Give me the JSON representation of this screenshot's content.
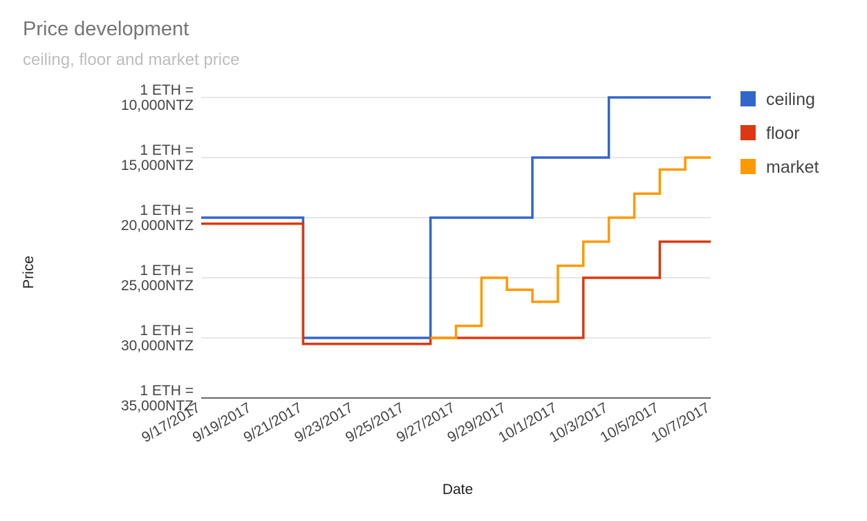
{
  "chart_data": {
    "type": "line",
    "title": "Price development",
    "subtitle": "ceiling, floor and market price",
    "xlabel": "Date",
    "ylabel": "Price",
    "x_type": "date",
    "x_range": [
      "9/17/2017",
      "10/7/2017"
    ],
    "x_ticks": [
      "9/17/2017",
      "9/19/2017",
      "9/21/2017",
      "9/23/2017",
      "9/25/2017",
      "9/27/2017",
      "9/29/2017",
      "10/1/2017",
      "10/3/2017",
      "10/5/2017",
      "10/7/2017"
    ],
    "y_unit": "NTZ per ETH",
    "y_axis_reversed": true,
    "ylim": [
      10000,
      35000
    ],
    "y_ticks": [
      {
        "value": 10000,
        "label_lines": [
          "1 ETH =",
          "10,000NTZ"
        ]
      },
      {
        "value": 15000,
        "label_lines": [
          "1 ETH =",
          "15,000NTZ"
        ]
      },
      {
        "value": 20000,
        "label_lines": [
          "1 ETH =",
          "20,000NTZ"
        ]
      },
      {
        "value": 25000,
        "label_lines": [
          "1 ETH =",
          "25,000NTZ"
        ]
      },
      {
        "value": 30000,
        "label_lines": [
          "1 ETH =",
          "30,000NTZ"
        ]
      },
      {
        "value": 35000,
        "label_lines": [
          "1 ETH =",
          "35,000NTZ"
        ]
      }
    ],
    "grid": true,
    "step_line": true,
    "legend_position": "right",
    "series": [
      {
        "name": "ceiling",
        "color": "#3366cc",
        "points": [
          {
            "x": "9/17/2017",
            "y": 20000
          },
          {
            "x": "9/21/2017",
            "y": 30000
          },
          {
            "x": "9/26/2017",
            "y": 20000
          },
          {
            "x": "9/30/2017",
            "y": 15000
          },
          {
            "x": "10/3/2017",
            "y": 10000
          },
          {
            "x": "10/7/2017",
            "y": 10000
          }
        ]
      },
      {
        "name": "floor",
        "color": "#dc3912",
        "points": [
          {
            "x": "9/17/2017",
            "y": 20500
          },
          {
            "x": "9/21/2017",
            "y": 30500
          },
          {
            "x": "9/26/2017",
            "y": 30000
          },
          {
            "x": "10/2/2017",
            "y": 25000
          },
          {
            "x": "10/5/2017",
            "y": 22000
          },
          {
            "x": "10/7/2017",
            "y": 22000
          }
        ]
      },
      {
        "name": "market",
        "color": "#ff9900",
        "points": [
          {
            "x": "9/26/2017",
            "y": 30000
          },
          {
            "x": "9/27/2017",
            "y": 29000
          },
          {
            "x": "9/28/2017",
            "y": 25000
          },
          {
            "x": "9/29/2017",
            "y": 26000
          },
          {
            "x": "9/30/2017",
            "y": 27000
          },
          {
            "x": "10/1/2017",
            "y": 24000
          },
          {
            "x": "10/2/2017",
            "y": 22000
          },
          {
            "x": "10/3/2017",
            "y": 20000
          },
          {
            "x": "10/4/2017",
            "y": 18000
          },
          {
            "x": "10/5/2017",
            "y": 16000
          },
          {
            "x": "10/6/2017",
            "y": 15000
          },
          {
            "x": "10/7/2017",
            "y": 15000
          }
        ]
      }
    ]
  }
}
